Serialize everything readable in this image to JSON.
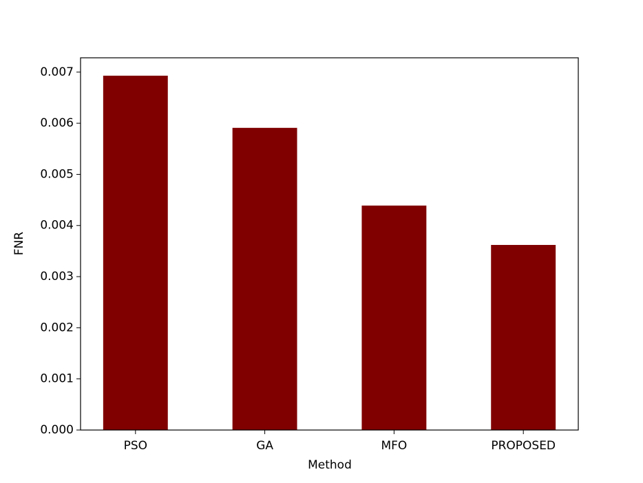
{
  "chart_data": {
    "type": "bar",
    "x_label": "Method",
    "y_label": "FNR",
    "categories": [
      "PSO",
      "GA",
      "MFO",
      "PROPOSED"
    ],
    "values": [
      0.00693,
      0.00591,
      0.00439,
      0.00362
    ],
    "color": "#800000",
    "ylim": [
      0,
      0.00728
    ],
    "yticks": [
      {
        "value": 0,
        "label": "0.000"
      },
      {
        "value": 0.001,
        "label": "0.001"
      },
      {
        "value": 0.002,
        "label": "0.002"
      },
      {
        "value": 0.003,
        "label": "0.003"
      },
      {
        "value": 0.004,
        "label": "0.004"
      },
      {
        "value": 0.005,
        "label": "0.005"
      },
      {
        "value": 0.006,
        "label": "0.006"
      },
      {
        "value": 0.007,
        "label": "0.007"
      }
    ],
    "grid": false
  }
}
